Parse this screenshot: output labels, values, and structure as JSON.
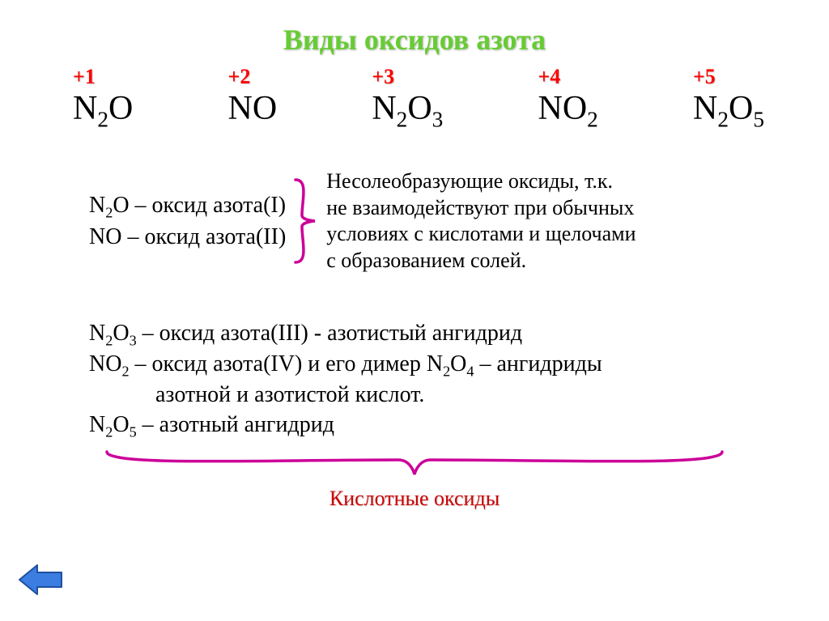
{
  "title": "Виды оксидов азота",
  "oxStates": {
    "charges": [
      "+1",
      "+2",
      "+3",
      "+4",
      "+5"
    ],
    "formulas_html": [
      "N<sub>2</sub>O",
      "NO",
      "N<sub>2</sub>O<sub>3</sub>",
      "NO<sub>2</sub>",
      "N<sub>2</sub>O<sub>5</sub>"
    ]
  },
  "nonSalt": {
    "line1_html": "N<sub>2</sub>O – оксид азота(I)",
    "line2_html": "NO – оксид азота(II)",
    "desc_l1": "Несолеобразующие оксиды, т.к.",
    "desc_l2": "не взаимодействуют при обычных",
    "desc_l3": "условиях с кислотами и щелочами",
    "desc_l4": "с образованием солей."
  },
  "acidic": {
    "l1_html": "N<sub>2</sub>O<sub>3</sub> – оксид азота(III) - азотистый ангидрид",
    "l2_html": "NO<sub>2</sub> – оксид азота(IV) и его димер N<sub>2</sub>O<sub>4</sub> –  ангидриды",
    "l3": "азотной и азотистой кислот.",
    "l4_html": "N<sub>2</sub>O<sub>5</sub> – азотный ангидрид"
  },
  "bottomLabel": "Кислотные оксиды",
  "colors": {
    "title": "#66cc33",
    "charge": "#ff0000",
    "brace": "#cc0099",
    "bottomLabel": "#cc0000",
    "arrowFill": "#3b7de0",
    "arrowStroke": "#1f4fa0"
  },
  "style": {
    "title_fontsize": 36,
    "charge_fontsize": 26,
    "formula_fontsize": 42,
    "body_fontsize": 28,
    "desc_fontsize": 26,
    "bottom_fontsize": 26
  }
}
